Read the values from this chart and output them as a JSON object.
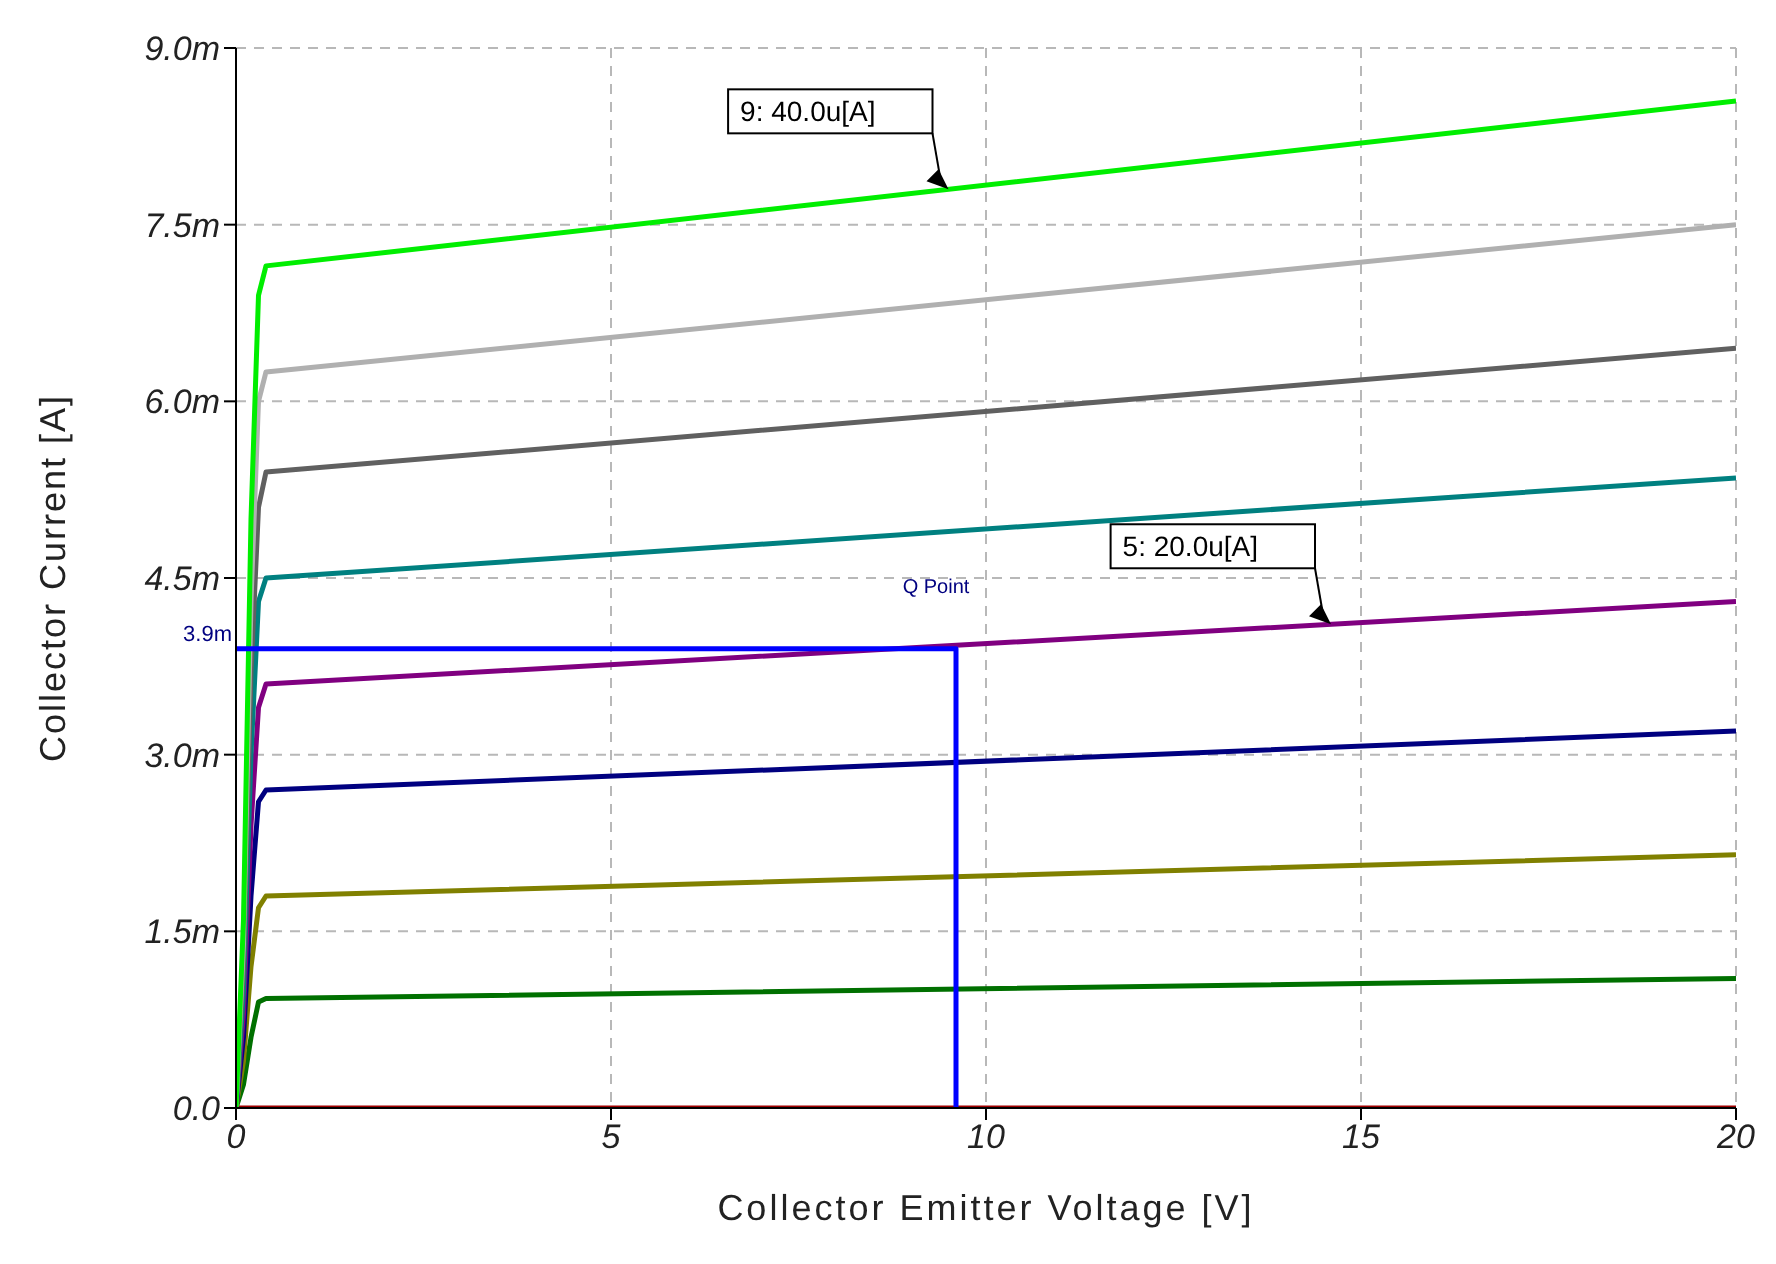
{
  "chart_data": {
    "type": "line",
    "xlabel": "Collector Emitter Voltage [V]",
    "ylabel": "Collector Current [A]",
    "xlim": [
      0,
      20
    ],
    "xticks": [
      0,
      5,
      10,
      15,
      20
    ],
    "ylim": [
      0,
      9
    ],
    "yticks": [
      {
        "value": 0,
        "label": "0.0"
      },
      {
        "value": 1.5,
        "label": "1.5m"
      },
      {
        "value": 3,
        "label": "3.0m"
      },
      {
        "value": 4.5,
        "label": "4.5m"
      },
      {
        "value": 6,
        "label": "6.0m"
      },
      {
        "value": 7.5,
        "label": "7.5m"
      },
      {
        "value": 9,
        "label": "9.0m"
      }
    ],
    "grid": true,
    "series": [
      {
        "color": "#a00000",
        "x": [
          0,
          20
        ],
        "values": [
          0,
          0
        ]
      },
      {
        "color": "#007000",
        "x": [
          0,
          0.1,
          0.2,
          0.3,
          0.4,
          20
        ],
        "values": [
          0,
          0.2,
          0.6,
          0.9,
          0.93,
          1.1
        ]
      },
      {
        "color": "#808000",
        "x": [
          0,
          0.1,
          0.2,
          0.3,
          0.4,
          20
        ],
        "values": [
          0,
          0.4,
          1.2,
          1.7,
          1.8,
          2.15
        ]
      },
      {
        "color": "#000080",
        "x": [
          0,
          0.1,
          0.2,
          0.3,
          0.4,
          20
        ],
        "values": [
          0,
          0.6,
          1.8,
          2.6,
          2.7,
          3.2
        ]
      },
      {
        "name": "5: 20.0u[A]",
        "color": "#800080",
        "x": [
          0,
          0.1,
          0.2,
          0.3,
          0.4,
          20
        ],
        "values": [
          0,
          0.8,
          2.4,
          3.4,
          3.6,
          4.3
        ]
      },
      {
        "color": "#008080",
        "x": [
          0,
          0.1,
          0.2,
          0.3,
          0.4,
          20
        ],
        "values": [
          0,
          1.0,
          3.0,
          4.3,
          4.5,
          5.35
        ]
      },
      {
        "color": "#606060",
        "x": [
          0,
          0.1,
          0.2,
          0.3,
          0.4,
          20
        ],
        "values": [
          0,
          1.2,
          3.7,
          5.1,
          5.4,
          6.45
        ]
      },
      {
        "color": "#b0b0b0",
        "x": [
          0,
          0.1,
          0.2,
          0.3,
          0.4,
          20
        ],
        "values": [
          0,
          1.4,
          4.3,
          6.0,
          6.25,
          7.5
        ]
      },
      {
        "name": "9: 40.0u[A]",
        "color": "#00ee00",
        "x": [
          0,
          0.1,
          0.2,
          0.3,
          0.4,
          20
        ],
        "values": [
          0,
          1.6,
          5.0,
          6.9,
          7.15,
          8.55
        ]
      },
      {
        "name": "Q Point",
        "color": "#0000ff",
        "x": [
          0,
          9.6,
          9.6
        ],
        "values": [
          3.9,
          3.9,
          0
        ]
      }
    ],
    "annotations": [
      {
        "text": "3.9m",
        "x": 0,
        "y": 3.9
      }
    ]
  }
}
